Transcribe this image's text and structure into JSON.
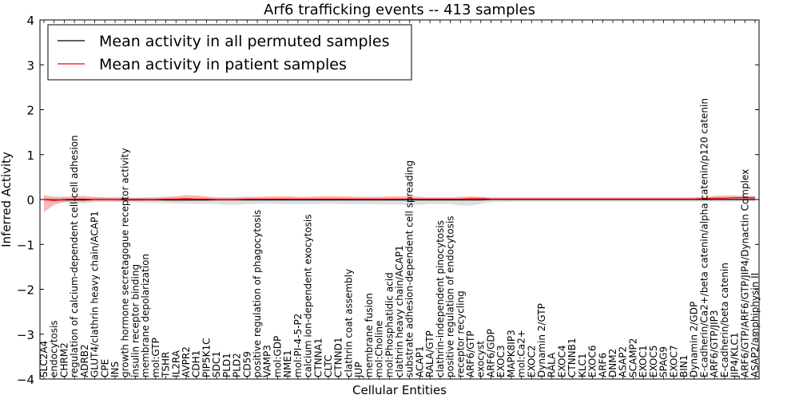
{
  "chart_data": {
    "type": "line",
    "title": "Arf6 trafficking events -- 413 samples",
    "xlabel": "Cellular Entities",
    "ylabel": "Inferred Activity",
    "ylim": [
      -4,
      4
    ],
    "yticks": [
      -4,
      -3,
      -2,
      -1,
      0,
      1,
      2,
      3,
      4
    ],
    "ytick_labels": [
      "−4",
      "−3",
      "−2",
      "−1",
      "0",
      "1",
      "2",
      "3",
      "4"
    ],
    "legend_position": "top-left",
    "categories": [
      "SLC2A4",
      "endocytosis",
      "CHRM2",
      "regulation of calcium-dependent cell-cell adhesion",
      "ADRB2",
      "GLUT4/clathrin heavy chain/ACAP1",
      "CPE",
      "INS",
      "growth hormone secretagogue receptor activity",
      "insulin receptor binding",
      "membrane depolarization",
      "mol:GTP",
      "TSHR",
      "IL2RA",
      "AVPR2",
      "CDH1",
      "PIP5K1C",
      "SDC1",
      "PLD1",
      "PLD2",
      "CD59",
      "positive regulation of phagocytosis",
      "VAMP3",
      "mol:GDP",
      "NME1",
      "mol:PI-4-5-P2",
      "calcium ion-dependent exocytosis",
      "CTNNA1",
      "CLTC",
      "CTNND1",
      "clathrin coat assembly",
      "JUP",
      "membrane fusion",
      "mol:Choline",
      "mol:Phosphatidic acid",
      "clathrin heavy chain/ACAP1",
      "substrate adhesion-dependent cell spreading",
      "ACAP1",
      "RALA/GTP",
      "clathrin-independent pinocytosis",
      "positive regulation of endocytosis",
      "receptor recycling",
      "ARF6/GTP",
      "exocyst",
      "ARF6/GDP",
      "EXOC3",
      "MAPK8IP3",
      "mol:Ca2+",
      "EXOC2",
      "Dynamin 2/GTP",
      "RALA",
      "EXOC4",
      "CTNNB1",
      "KLC1",
      "EXOC6",
      "ARF6",
      "DNM2",
      "ASAP2",
      "SCAMP2",
      "EXOC1",
      "EXOC5",
      "SPAG9",
      "EXOC7",
      "BIN1",
      "Dynamin 2/GDP",
      "E-cadherin/Ca2+/beta catenin/alpha catenin/p120 catenin",
      "ARF6/GTP/JIP3",
      "E-cadherin/beta catenin",
      "JIP4/KLC1",
      "ARF6/GTP/ARF6/GTP/JIP4/Dynactin Complex",
      "ASAP2/amphiphysin II"
    ],
    "series": [
      {
        "name": "Mean activity in all permuted samples",
        "color": "#000000",
        "values": [
          0,
          -0.01,
          -0.01,
          -0.01,
          -0.01,
          0,
          0,
          0,
          -0.01,
          -0.01,
          -0.01,
          -0.01,
          -0.01,
          -0.01,
          -0.01,
          -0.01,
          -0.01,
          -0.01,
          -0.01,
          -0.01,
          -0.01,
          -0.01,
          -0.01,
          -0.01,
          -0.01,
          -0.01,
          -0.01,
          -0.01,
          -0.01,
          -0.01,
          -0.01,
          -0.01,
          -0.01,
          -0.01,
          -0.01,
          -0.01,
          -0.01,
          -0.01,
          -0.01,
          -0.01,
          -0.01,
          -0.01,
          -0.01,
          -0.01,
          0,
          0,
          0,
          0,
          0,
          0,
          0,
          0,
          0,
          0,
          0,
          0,
          0,
          0,
          0,
          0,
          0,
          0,
          0,
          0,
          0,
          0,
          0,
          0,
          0,
          0,
          0
        ],
        "band_low": [
          -0.06,
          -0.06,
          -0.07,
          -0.08,
          -0.08,
          -0.06,
          -0.05,
          -0.05,
          -0.06,
          -0.07,
          -0.07,
          -0.08,
          -0.08,
          -0.09,
          -0.09,
          -0.1,
          -0.09,
          -0.1,
          -0.12,
          -0.12,
          -0.1,
          -0.1,
          -0.09,
          -0.1,
          -0.1,
          -0.1,
          -0.1,
          -0.1,
          -0.09,
          -0.1,
          -0.1,
          -0.1,
          -0.1,
          -0.11,
          -0.11,
          -0.11,
          -0.12,
          -0.12,
          -0.1,
          -0.1,
          -0.1,
          -0.13,
          -0.14,
          -0.1,
          -0.06,
          -0.06,
          -0.05,
          -0.05,
          -0.05,
          -0.05,
          -0.05,
          -0.05,
          -0.05,
          -0.05,
          -0.05,
          -0.05,
          -0.05,
          -0.05,
          -0.05,
          -0.05,
          -0.05,
          -0.05,
          -0.05,
          -0.05,
          -0.05,
          -0.05,
          -0.05,
          -0.05,
          -0.05,
          -0.05,
          -0.05
        ],
        "band_high": [
          0.04,
          0.04,
          0.04,
          0.04,
          0.04,
          0.04,
          0.04,
          0.04,
          0.04,
          0.04,
          0.04,
          0.04,
          0.04,
          0.04,
          0.04,
          0.04,
          0.04,
          0.04,
          0.04,
          0.04,
          0.04,
          0.04,
          0.04,
          0.04,
          0.04,
          0.04,
          0.04,
          0.04,
          0.04,
          0.04,
          0.04,
          0.04,
          0.04,
          0.04,
          0.04,
          0.04,
          0.04,
          0.04,
          0.04,
          0.04,
          0.04,
          0.04,
          0.04,
          0.04,
          0.04,
          0.04,
          0.04,
          0.04,
          0.04,
          0.04,
          0.04,
          0.04,
          0.04,
          0.04,
          0.04,
          0.04,
          0.04,
          0.04,
          0.04,
          0.04,
          0.04,
          0.04,
          0.04,
          0.04,
          0.04,
          0.04,
          0.04,
          0.04,
          0.04,
          0.04,
          0.04
        ]
      },
      {
        "name": "Mean activity in patient samples",
        "color": "#ff0000",
        "band_color": "#f08080",
        "values": [
          0,
          -0.02,
          0,
          0.01,
          0.01,
          0,
          0,
          0,
          0,
          0,
          0,
          0,
          0.01,
          0.01,
          0.02,
          0.01,
          0.01,
          0,
          0,
          0,
          0.01,
          0.01,
          0.01,
          0.01,
          0.01,
          0.01,
          0.01,
          0.01,
          0.01,
          0.01,
          0.01,
          0.01,
          0.01,
          0.01,
          0.01,
          0.01,
          0.01,
          0.01,
          0.01,
          0.01,
          0.01,
          0.01,
          0.02,
          0.02,
          0.01,
          0.01,
          0.01,
          0.01,
          0.01,
          0.01,
          0.01,
          0.01,
          0.01,
          0.01,
          0.01,
          0.01,
          0.01,
          0.01,
          0.01,
          0.01,
          0.01,
          0.01,
          0.01,
          0.01,
          0.01,
          0.02,
          0.03,
          0.03,
          0.04,
          0.04,
          0.04
        ],
        "band_low": [
          -0.28,
          -0.12,
          -0.05,
          -0.04,
          -0.05,
          -0.03,
          -0.03,
          -0.04,
          -0.03,
          -0.03,
          -0.02,
          -0.02,
          -0.03,
          -0.04,
          -0.03,
          -0.03,
          -0.03,
          -0.02,
          -0.02,
          -0.02,
          -0.02,
          -0.02,
          -0.02,
          -0.02,
          -0.02,
          -0.02,
          -0.02,
          -0.02,
          -0.02,
          -0.02,
          -0.02,
          -0.02,
          -0.02,
          -0.02,
          -0.02,
          -0.02,
          -0.02,
          -0.02,
          -0.02,
          -0.02,
          -0.02,
          -0.02,
          -0.01,
          -0.01,
          -0.01,
          -0.01,
          -0.01,
          -0.01,
          -0.01,
          -0.01,
          -0.01,
          -0.01,
          -0.01,
          -0.01,
          -0.01,
          -0.01,
          -0.01,
          -0.01,
          -0.01,
          -0.01,
          -0.01,
          -0.01,
          -0.01,
          -0.01,
          -0.01,
          -0.01,
          -0.01,
          -0.01,
          0.0,
          0.0,
          0.0
        ],
        "band_high": [
          0.1,
          0.06,
          0.06,
          0.08,
          0.08,
          0.06,
          0.05,
          0.05,
          0.05,
          0.04,
          0.05,
          0.05,
          0.06,
          0.07,
          0.1,
          0.09,
          0.07,
          0.05,
          0.05,
          0.05,
          0.06,
          0.06,
          0.07,
          0.07,
          0.07,
          0.06,
          0.06,
          0.07,
          0.08,
          0.07,
          0.07,
          0.06,
          0.06,
          0.06,
          0.07,
          0.07,
          0.07,
          0.06,
          0.05,
          0.05,
          0.05,
          0.06,
          0.07,
          0.06,
          0.05,
          0.05,
          0.05,
          0.05,
          0.05,
          0.05,
          0.05,
          0.05,
          0.05,
          0.05,
          0.05,
          0.05,
          0.05,
          0.05,
          0.05,
          0.05,
          0.05,
          0.05,
          0.05,
          0.05,
          0.05,
          0.06,
          0.08,
          0.09,
          0.09,
          0.08,
          0.08
        ]
      }
    ]
  }
}
